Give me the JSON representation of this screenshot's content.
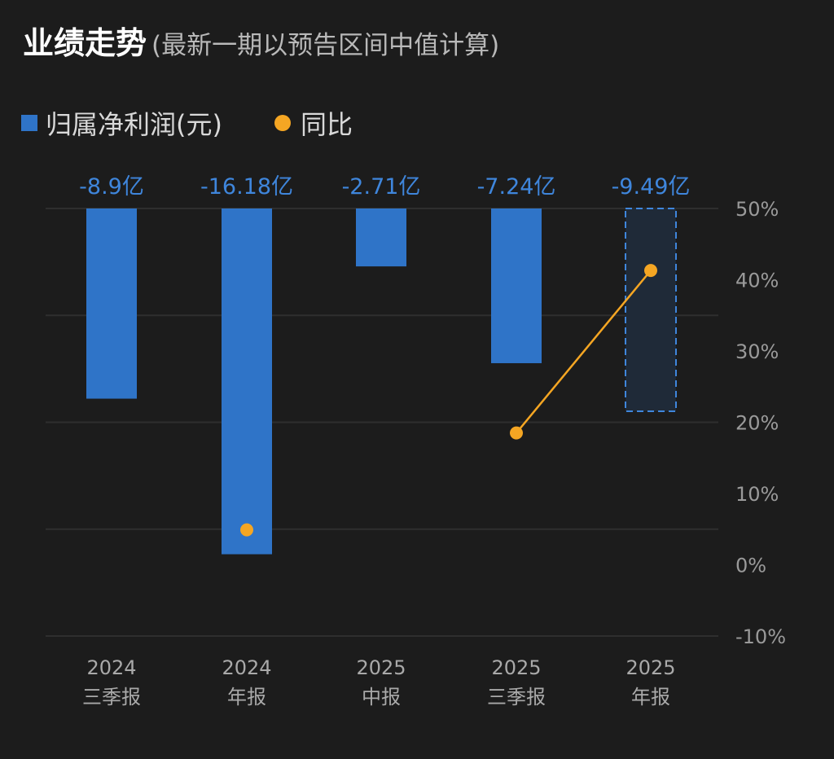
{
  "header": {
    "title": "业绩走势",
    "subtitle": "(最新一期以预告区间中值计算)"
  },
  "legend": {
    "bar_label": "归属净利润(元)",
    "line_label": "同比"
  },
  "colors": {
    "bar": "#2f74c8",
    "forecast_bar_border": "#3f86dc",
    "forecast_bar_fill": "#1f2a38",
    "line": "#f5a623",
    "value_label": "#3f86dc",
    "grid": "#2e2e2e",
    "background": "#1c1c1c"
  },
  "chart_data": {
    "type": "bar",
    "categories": [
      [
        "2024",
        "三季报"
      ],
      [
        "2024",
        "年报"
      ],
      [
        "2025",
        "中报"
      ],
      [
        "2025",
        "三季报"
      ],
      [
        "2025",
        "年报"
      ]
    ],
    "series": [
      {
        "name": "归属净利润(元)",
        "type": "bar",
        "unit": "亿",
        "values": [
          -8.9,
          -16.18,
          -2.71,
          -7.24,
          -9.49
        ],
        "value_labels": [
          "-8.9亿",
          "-16.18亿",
          "-2.71亿",
          "-7.24亿",
          "-9.49亿"
        ],
        "forecast_index": 4
      },
      {
        "name": "同比",
        "type": "line",
        "unit": "%",
        "values": [
          null,
          4.9,
          null,
          18.5,
          41.3
        ]
      }
    ],
    "y_right": {
      "ticks": [
        "50%",
        "40%",
        "30%",
        "20%",
        "10%",
        "0%",
        "-10%"
      ],
      "range": [
        -10,
        50
      ]
    },
    "bar_range": [
      -20,
      0
    ],
    "grid": true,
    "legend_position": "top-left"
  }
}
